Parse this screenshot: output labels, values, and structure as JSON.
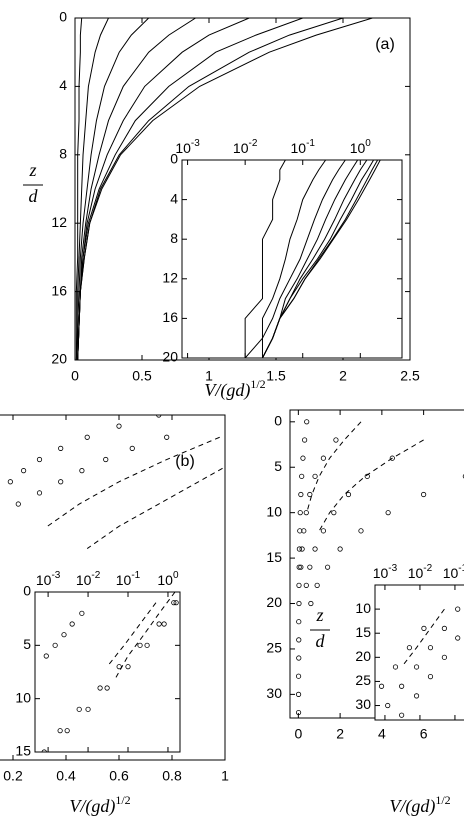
{
  "chart_data": [
    {
      "type": "line",
      "panel_label": "(a)",
      "x_label": "V/(gd)",
      "x_label_sup": "1/2",
      "y_label_top": "z",
      "y_label_bottom": "d",
      "xlim": [
        0,
        2.5
      ],
      "xticks": [
        0,
        0.5,
        1,
        1.5,
        2,
        2.5
      ],
      "ylim": [
        0,
        20
      ],
      "yticks": [
        0,
        4,
        8,
        12,
        16,
        20
      ],
      "z": [
        0,
        1,
        2,
        4,
        6,
        8,
        10,
        12,
        14,
        16,
        18,
        20
      ],
      "series": [
        {
          "color": "#000000",
          "style": "solid",
          "values": [
            2.22,
            1.8,
            1.45,
            0.93,
            0.58,
            0.34,
            0.2,
            0.11,
            0.07,
            0.04,
            0.03,
            0.02
          ]
        },
        {
          "color": "#000000",
          "style": "solid",
          "values": [
            2.0,
            1.6,
            1.3,
            0.85,
            0.55,
            0.33,
            0.19,
            0.11,
            0.07,
            0.04,
            0.03,
            0.02
          ]
        },
        {
          "color": "#000000",
          "style": "solid",
          "values": [
            1.7,
            1.35,
            1.05,
            0.7,
            0.45,
            0.3,
            0.18,
            0.1,
            0.06,
            0.04,
            0.03,
            0.02
          ]
        },
        {
          "color": "#000000",
          "style": "solid",
          "values": [
            1.3,
            1.0,
            0.8,
            0.52,
            0.36,
            0.24,
            0.15,
            0.09,
            0.06,
            0.04,
            0.03,
            0.02
          ]
        },
        {
          "color": "#000000",
          "style": "solid",
          "values": [
            0.9,
            0.7,
            0.55,
            0.36,
            0.25,
            0.18,
            0.12,
            0.08,
            0.05,
            0.04,
            0.03,
            0.02
          ]
        },
        {
          "color": "#000000",
          "style": "solid",
          "values": [
            0.55,
            0.42,
            0.33,
            0.22,
            0.16,
            0.12,
            0.09,
            0.06,
            0.04,
            0.03,
            0.02,
            0.02
          ]
        },
        {
          "color": "#000000",
          "style": "solid",
          "values": [
            0.25,
            0.19,
            0.15,
            0.1,
            0.08,
            0.06,
            0.05,
            0.04,
            0.03,
            0.02,
            0.02,
            0.01
          ]
        },
        {
          "color": "#000000",
          "style": "solid",
          "values": [
            0.05,
            0.04,
            0.04,
            0.03,
            0.03,
            0.02,
            0.02,
            0.02,
            0.02,
            0.01,
            0.01,
            0.01
          ]
        }
      ],
      "inset": {
        "xscale": "log",
        "xlim": [
          0.0008,
          5.3
        ],
        "xticks": [
          {
            "value": 0.001,
            "label": "10",
            "exponent": "-3"
          },
          {
            "value": 0.01,
            "label": "10",
            "exponent": "-2"
          },
          {
            "value": 0.1,
            "label": "10",
            "exponent": "-1"
          },
          {
            "value": 1,
            "label": "10",
            "exponent": "0"
          }
        ],
        "ylim": [
          0,
          20
        ],
        "yticks": [
          0,
          4,
          8,
          12,
          16,
          20
        ]
      }
    },
    {
      "type": "line",
      "panel_label": "(b)",
      "x_label": "V/(gd)",
      "x_label_sup": "1/2",
      "xlim": [
        0,
        1
      ],
      "xticks": [
        0.2,
        0.4,
        0.6,
        0.8,
        1
      ],
      "ylim": [
        0,
        15.5
      ],
      "series": [
        {
          "color": "#000000",
          "style": "circles",
          "z": [
            0,
            0.5,
            1,
            1.5,
            2,
            2.5,
            3
          ],
          "values": [
            0.75,
            0.6,
            0.48,
            0.38,
            0.3,
            0.24,
            0.19
          ]
        },
        {
          "color": "#000000",
          "style": "circles",
          "z": [
            1,
            1.5,
            2,
            2.5,
            3,
            3.5,
            4
          ],
          "values": [
            0.78,
            0.65,
            0.55,
            0.46,
            0.38,
            0.3,
            0.22
          ]
        },
        {
          "color": "#000000",
          "style": "dashed",
          "z": [
            1,
            2,
            3,
            4,
            5
          ],
          "values": [
            0.98,
            0.78,
            0.6,
            0.45,
            0.33
          ]
        },
        {
          "color": "#000000",
          "style": "dashed",
          "z": [
            2,
            3,
            4,
            5,
            6
          ],
          "values": [
            1.05,
            0.9,
            0.75,
            0.6,
            0.48
          ]
        }
      ],
      "inset": {
        "xscale": "log",
        "xlim": [
          0.00047,
          2
        ],
        "xticks": [
          {
            "value": 0.001,
            "label": "10",
            "exponent": "-3"
          },
          {
            "value": 0.01,
            "label": "10",
            "exponent": "-2"
          },
          {
            "value": 0.1,
            "label": "10",
            "exponent": "-1"
          },
          {
            "value": 1,
            "label": "10",
            "exponent": "0"
          }
        ],
        "ylim": [
          0,
          15
        ],
        "yticks": [
          0,
          5,
          10,
          15
        ],
        "series": [
          {
            "color": "#000000",
            "style": "circles",
            "z": [
              15,
              13,
              11,
              9,
              7,
              5,
              3,
              1
            ],
            "values": [
              0.0008,
              0.003,
              0.01,
              0.03,
              0.1,
              0.3,
              0.8,
              1.6
            ]
          },
          {
            "color": "#000000",
            "style": "circles",
            "z": [
              13,
              11,
              9,
              7,
              5,
              3,
              1
            ],
            "values": [
              0.002,
              0.006,
              0.02,
              0.06,
              0.2,
              0.6,
              1.4
            ]
          },
          {
            "color": "#000000",
            "style": "circles",
            "z": [
              6,
              5,
              4,
              3,
              2
            ],
            "values": [
              0.0009,
              0.0015,
              0.0025,
              0.004,
              0.007
            ]
          },
          {
            "color": "#000000",
            "style": "dashed",
            "z": [
              0,
              2,
              4,
              6,
              8
            ],
            "values": [
              1.5,
              0.6,
              0.25,
              0.1,
              0.05
            ]
          },
          {
            "color": "#000000",
            "style": "dashed",
            "z": [
              1,
              3,
              5,
              7
            ],
            "values": [
              0.5,
              0.2,
              0.08,
              0.03
            ]
          }
        ]
      }
    },
    {
      "type": "line",
      "x_label": "V/(gd)",
      "x_label_sup": "1/2",
      "y_label_top": "z",
      "y_label_bottom": "d",
      "xlim": [
        -0.4,
        8.7
      ],
      "xticks": [
        0,
        2,
        4,
        6
      ],
      "ylim": [
        -1.3,
        32.6
      ],
      "yticks": [
        0,
        5,
        10,
        15,
        20,
        25,
        30
      ],
      "series": [
        {
          "color": "#000000",
          "style": "circles",
          "z": [
            0,
            2,
            4,
            6,
            8,
            10,
            12,
            14,
            16,
            18,
            20,
            22,
            24,
            26,
            28,
            30,
            32
          ],
          "values": [
            0.4,
            0.3,
            0.22,
            0.16,
            0.12,
            0.09,
            0.07,
            0.05,
            0.04,
            0.03,
            0.03,
            0.02,
            0.02,
            0.02,
            0.01,
            0.01,
            0.01
          ]
        },
        {
          "color": "#000000",
          "style": "circles",
          "z": [
            2,
            4,
            6,
            8,
            10,
            12,
            14,
            16
          ],
          "values": [
            1.8,
            1.2,
            0.8,
            0.55,
            0.38,
            0.26,
            0.18,
            0.12
          ]
        },
        {
          "color": "#000000",
          "style": "circles",
          "z": [
            4,
            6,
            8,
            10,
            12,
            14,
            16,
            18
          ],
          "values": [
            4.5,
            3.3,
            2.4,
            1.7,
            1.2,
            0.8,
            0.55,
            0.38
          ]
        },
        {
          "color": "#000000",
          "style": "circles",
          "z": [
            6,
            8,
            10,
            12,
            14,
            16,
            18,
            20
          ],
          "values": [
            8,
            6,
            4.3,
            3,
            2,
            1.4,
            0.9,
            0.6
          ]
        },
        {
          "color": "#000000",
          "style": "dashed",
          "z": [
            0,
            2,
            4,
            6,
            8,
            10
          ],
          "values": [
            3,
            2.2,
            1.5,
            1.0,
            0.65,
            0.4
          ]
        },
        {
          "color": "#000000",
          "style": "dashed",
          "z": [
            2,
            4,
            6,
            8,
            10,
            12
          ],
          "values": [
            6,
            4.5,
            3.2,
            2.2,
            1.5,
            1.0
          ]
        }
      ],
      "inset": {
        "xscale": "log",
        "xlim": [
          0.00052,
          0.52
        ],
        "xticks": [
          {
            "value": 0.001,
            "label": "10",
            "exponent": "-3"
          },
          {
            "value": 0.01,
            "label": "10",
            "exponent": "-2"
          },
          {
            "value": 0.1,
            "label": "10",
            "exponent": "-1"
          }
        ],
        "ylim": [
          5,
          33
        ],
        "yticks": [
          10,
          15,
          20,
          25,
          30
        ],
        "series": [
          {
            "color": "#000000",
            "style": "circles",
            "z": [
              30,
              26,
              22,
              18,
              14,
              10
            ],
            "values": [
              0.0012,
              0.003,
              0.008,
              0.02,
              0.05,
              0.12
            ]
          },
          {
            "color": "#000000",
            "style": "circles",
            "z": [
              32,
              28,
              24,
              20,
              16,
              12
            ],
            "values": [
              0.003,
              0.008,
              0.02,
              0.05,
              0.12,
              0.25
            ]
          },
          {
            "color": "#000000",
            "style": "circles",
            "z": [
              26,
              22,
              18,
              14
            ],
            "values": [
              0.0008,
              0.002,
              0.005,
              0.013
            ]
          },
          {
            "color": "#000000",
            "style": "dashed",
            "z": [
              10,
              14,
              18,
              22
            ],
            "values": [
              0.05,
              0.02,
              0.008,
              0.003
            ]
          }
        ]
      }
    }
  ]
}
